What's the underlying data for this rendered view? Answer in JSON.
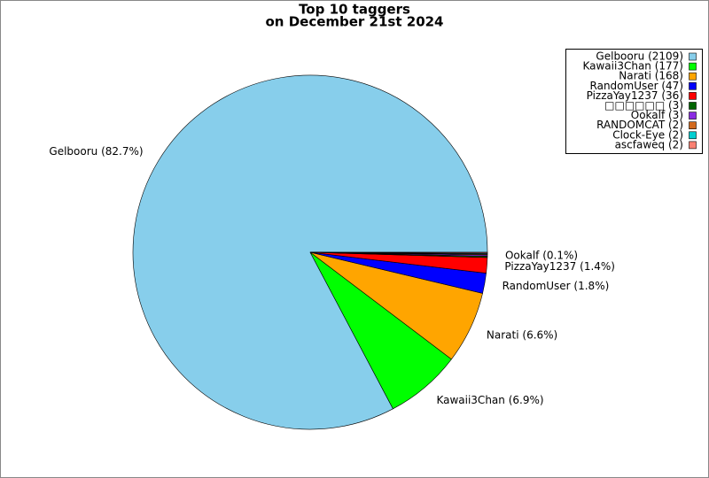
{
  "chart_data": {
    "type": "pie",
    "title": [
      "Top 10 taggers",
      "on December 21st 2024"
    ],
    "categories": [
      "Gelbooru (2109)",
      "Kawaii3Chan (177)",
      "Narati (168)",
      "RandomUser (47)",
      "PizzaYay1237 (36)",
      "□□□□□□ (3)",
      "Ookalf (3)",
      "RANDOMCAT (2)",
      "Clock-Eye (2)",
      "ascfaweq (2)"
    ],
    "values": [
      2109,
      177,
      168,
      47,
      36,
      3,
      3,
      2,
      2,
      2
    ],
    "slice_labels": [
      "Gelbooru (82.7%)",
      "Kawaii3Chan (6.9%)",
      "Narati (6.6%)",
      "RandomUser (1.8%)",
      "PizzaYay1237 (1.4%)",
      null,
      "Ookalf (0.1%)",
      null,
      null,
      null
    ],
    "colors": [
      "#87ceeb",
      "#00ff00",
      "#ffa500",
      "#0000ff",
      "#ff0000",
      "#006400",
      "#8a2be2",
      "#d2691e",
      "#00ced1",
      "#fa8072"
    ],
    "legend": "upper right"
  }
}
